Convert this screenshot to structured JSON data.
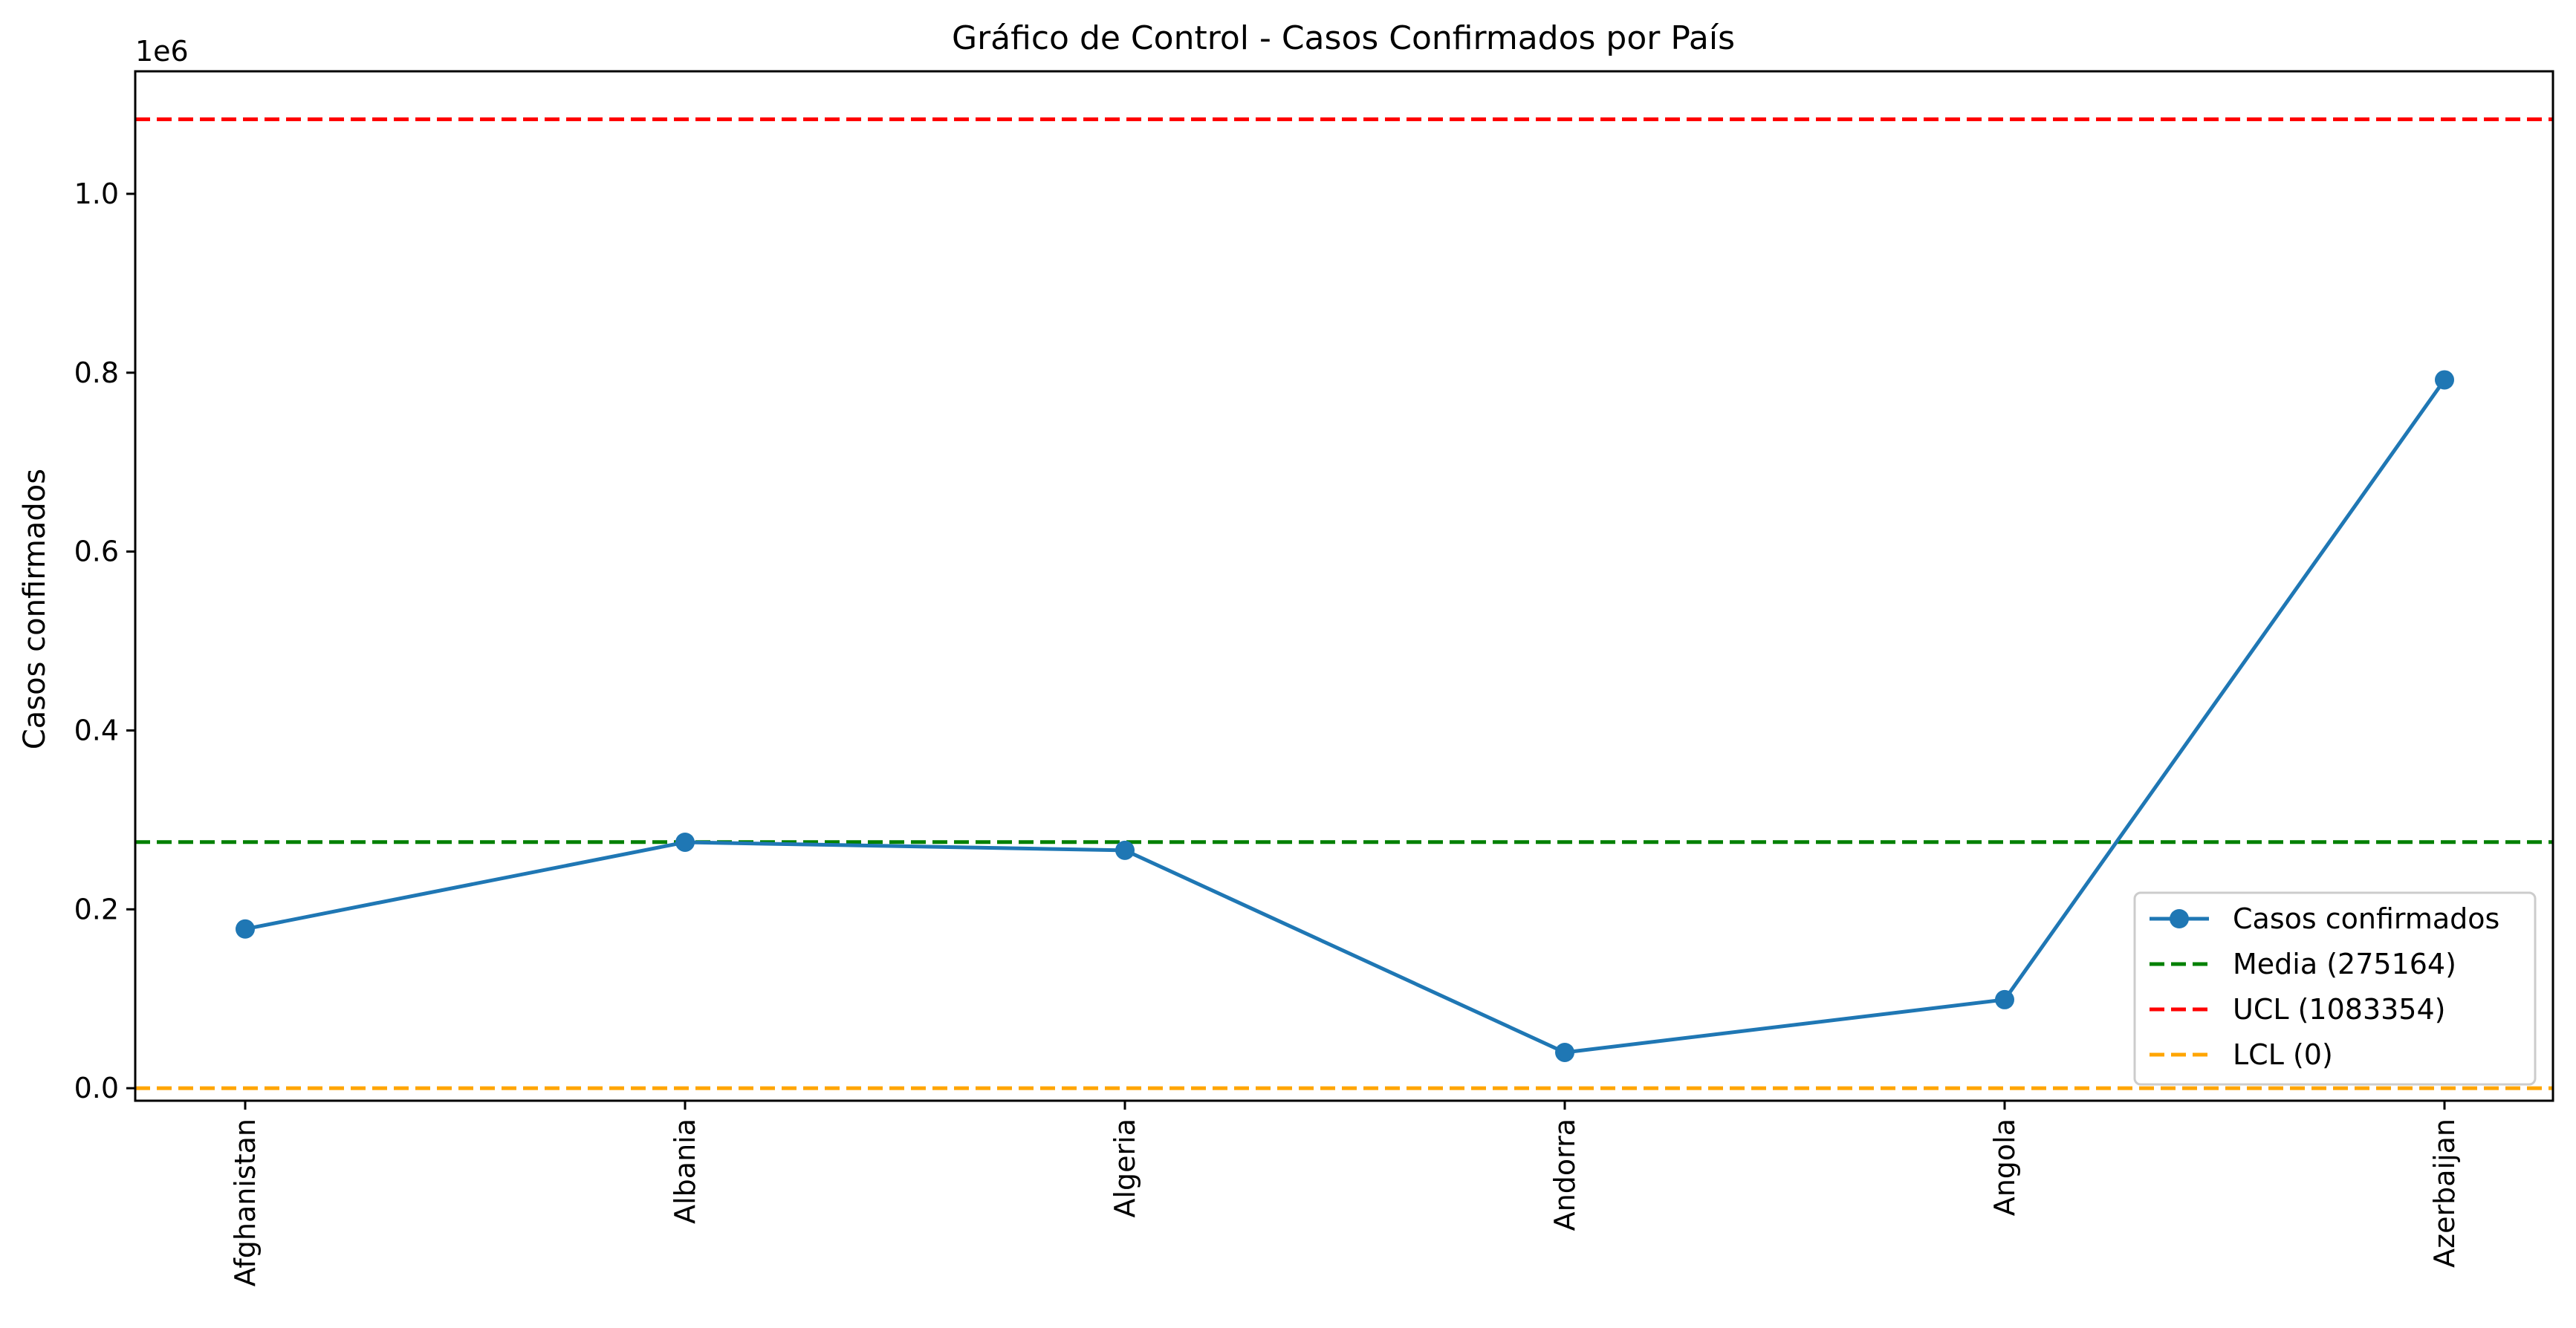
{
  "chart_data": {
    "type": "line",
    "title": "Gráfico de Control - Casos Confirmados por País",
    "xlabel": "",
    "ylabel": "Casos confirmados",
    "y_offset_label": "1e6",
    "categories": [
      "Afghanistan",
      "Albania",
      "Algeria",
      "Andorra",
      "Angola",
      "Azerbaijan"
    ],
    "series": [
      {
        "name": "Casos confirmados",
        "values": [
          178000,
          275000,
          266000,
          40000,
          99000,
          792000
        ],
        "color": "#1f77b4",
        "marker": "circle"
      }
    ],
    "control_lines": [
      {
        "name": "Media (275164)",
        "value": 275164,
        "color": "#008000",
        "style": "dashed"
      },
      {
        "name": "UCL (1083354)",
        "value": 1083354,
        "color": "#ff0000",
        "style": "dashed"
      },
      {
        "name": "LCL (0)",
        "value": 0,
        "color": "#ffa500",
        "style": "dashed"
      }
    ],
    "y_ticks": [
      0,
      200000,
      400000,
      600000,
      800000,
      1000000
    ],
    "y_tick_labels": [
      "0.0",
      "0.2",
      "0.4",
      "0.6",
      "0.8",
      "1.0"
    ],
    "ylim": [
      -14000,
      1137000
    ],
    "grid": false,
    "legend_position": "lower-right"
  }
}
